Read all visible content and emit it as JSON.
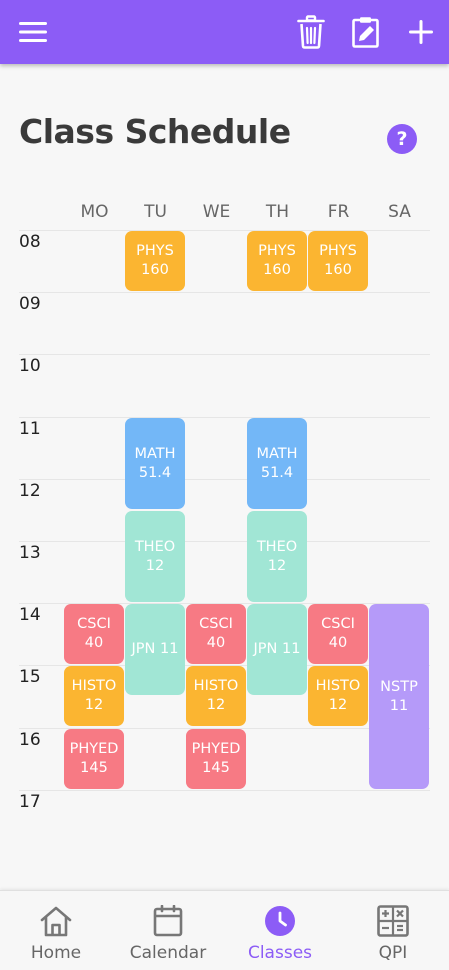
{
  "colors": {
    "accent": "#8c5cf6",
    "orange": "#fbb531",
    "blue": "#73b7f7",
    "teal": "#a1e6d5",
    "red": "#f77a84",
    "purple": "#b59af9"
  },
  "appbar": {
    "menu_icon": "hamburger-icon",
    "delete_icon": "trash-icon",
    "edit_icon": "clipboard-edit-icon",
    "add_icon": "plus-icon"
  },
  "page": {
    "title": "Class Schedule",
    "help_label": "?"
  },
  "schedule": {
    "days": [
      "MO",
      "TU",
      "WE",
      "TH",
      "FR",
      "SA"
    ],
    "hours": [
      "08",
      "09",
      "10",
      "11",
      "12",
      "13",
      "14",
      "15",
      "16",
      "17"
    ],
    "classes": [
      {
        "day": "TU",
        "start": 8,
        "end": 9,
        "line1": "PHYS",
        "line2": "160",
        "color": "orange"
      },
      {
        "day": "TH",
        "start": 8,
        "end": 9,
        "line1": "PHYS",
        "line2": "160",
        "color": "orange"
      },
      {
        "day": "FR",
        "start": 8,
        "end": 9,
        "line1": "PHYS",
        "line2": "160",
        "color": "orange"
      },
      {
        "day": "TU",
        "start": 11,
        "end": 12.5,
        "line1": "MATH",
        "line2": "51.4",
        "color": "blue"
      },
      {
        "day": "TH",
        "start": 11,
        "end": 12.5,
        "line1": "MATH",
        "line2": "51.4",
        "color": "blue"
      },
      {
        "day": "TU",
        "start": 12.5,
        "end": 14,
        "line1": "THEO",
        "line2": "12",
        "color": "teal"
      },
      {
        "day": "TH",
        "start": 12.5,
        "end": 14,
        "line1": "THEO",
        "line2": "12",
        "color": "teal"
      },
      {
        "day": "TU",
        "start": 14,
        "end": 15.5,
        "line1": "JPN 11",
        "line2": "",
        "color": "teal"
      },
      {
        "day": "TH",
        "start": 14,
        "end": 15.5,
        "line1": "JPN 11",
        "line2": "",
        "color": "teal"
      },
      {
        "day": "MO",
        "start": 14,
        "end": 15,
        "line1": "CSCI",
        "line2": "40",
        "color": "red"
      },
      {
        "day": "WE",
        "start": 14,
        "end": 15,
        "line1": "CSCI",
        "line2": "40",
        "color": "red"
      },
      {
        "day": "FR",
        "start": 14,
        "end": 15,
        "line1": "CSCI",
        "line2": "40",
        "color": "red"
      },
      {
        "day": "MO",
        "start": 15,
        "end": 16,
        "line1": "HISTO",
        "line2": "12",
        "color": "orange"
      },
      {
        "day": "WE",
        "start": 15,
        "end": 16,
        "line1": "HISTO",
        "line2": "12",
        "color": "orange"
      },
      {
        "day": "FR",
        "start": 15,
        "end": 16,
        "line1": "HISTO",
        "line2": "12",
        "color": "orange"
      },
      {
        "day": "MO",
        "start": 16,
        "end": 17,
        "line1": "PHYED",
        "line2": "145",
        "color": "red"
      },
      {
        "day": "WE",
        "start": 16,
        "end": 17,
        "line1": "PHYED",
        "line2": "145",
        "color": "red"
      },
      {
        "day": "SA",
        "start": 14,
        "end": 17,
        "line1": "NSTP",
        "line2": "11",
        "color": "purple"
      }
    ]
  },
  "nav": [
    {
      "label": "Home",
      "icon": "home-icon",
      "active": false
    },
    {
      "label": "Calendar",
      "icon": "calendar-icon",
      "active": false
    },
    {
      "label": "Classes",
      "icon": "clock-icon",
      "active": true
    },
    {
      "label": "QPI",
      "icon": "calculator-icon",
      "active": false
    }
  ]
}
